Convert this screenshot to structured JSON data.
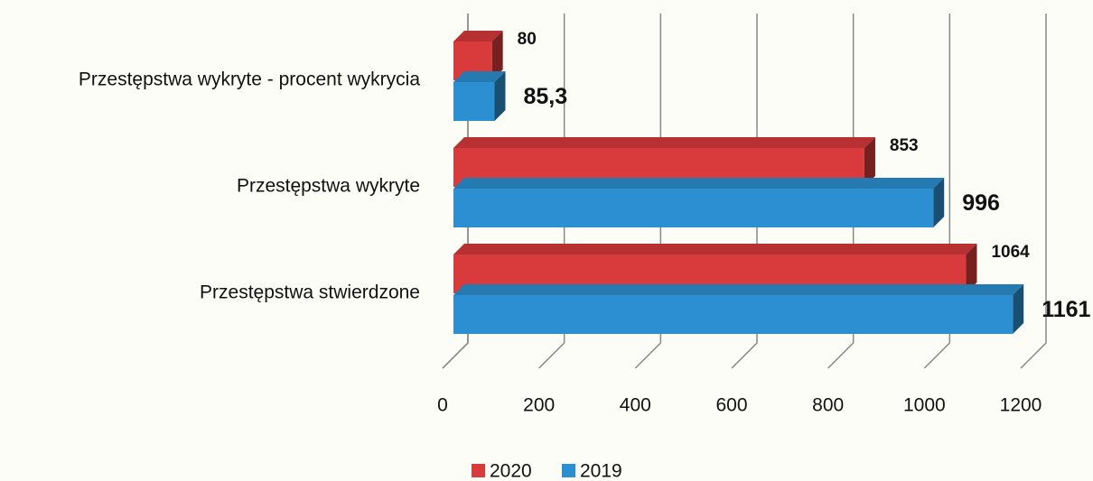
{
  "chart_data": {
    "type": "bar3d_horizontal",
    "categories": [
      "Przestępstwa wykryte - procent wykrycia",
      "Przestępstwa wykryte",
      "Przestępstwa stwierdzone"
    ],
    "series": [
      {
        "name": "2020",
        "color": "#d93a3b",
        "values": [
          80,
          853,
          1064
        ]
      },
      {
        "name": "2019",
        "color": "#2b8fd1",
        "values": [
          85.3,
          996,
          1161
        ],
        "value_labels": [
          "85,3",
          "996",
          "1161"
        ]
      }
    ],
    "xlim": [
      0,
      1200
    ],
    "xticks": [
      0,
      200,
      400,
      600,
      800,
      1000,
      1200
    ],
    "grid": true,
    "legend": "bottom"
  }
}
